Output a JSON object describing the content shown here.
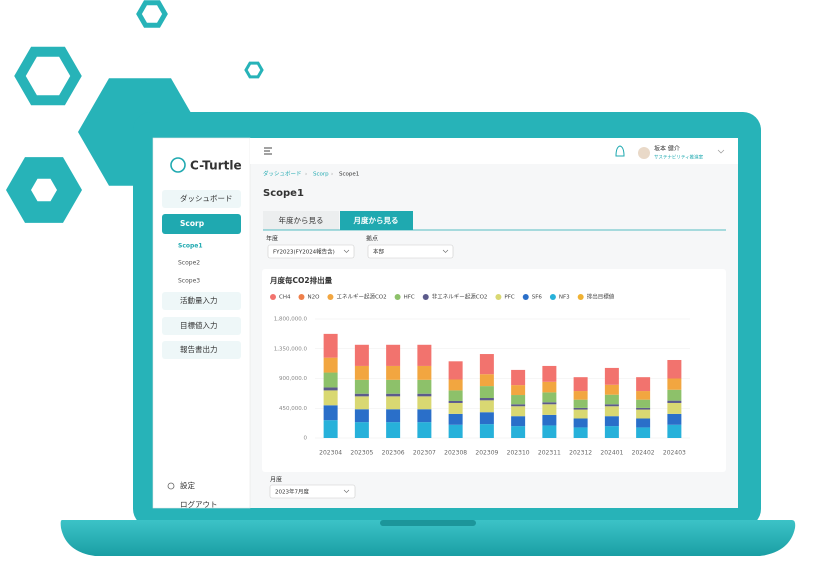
{
  "sidebar": {
    "logo": "C-Turtle",
    "menu": [
      {
        "label": "ダッシュボード"
      },
      {
        "label": "Scorp",
        "children": [
          "Scope1",
          "Scope2",
          "Scope3"
        ]
      },
      {
        "label": "活動量入力"
      },
      {
        "label": "目標値入力"
      },
      {
        "label": "報告書出力"
      }
    ],
    "footer": [
      "設定",
      "ログアウト"
    ]
  },
  "header": {
    "user_name": "坂本 健介",
    "user_role": "サステナビリティ推進室"
  },
  "breadcrumb": [
    "ダッシュボード",
    "Scorp",
    "Scope1"
  ],
  "page_title": "Scope1",
  "tabs": [
    "年度から見る",
    "月度から見る"
  ],
  "filters": [
    {
      "label": "年度",
      "value": "FY2023(FY2024報告含)"
    },
    {
      "label": "拠点",
      "value": "本部"
    }
  ],
  "month_filter": {
    "label": "月度",
    "value": "2023年7月度"
  },
  "chart_data": {
    "type": "stacked_bar",
    "title": "月度毎CO2排出量",
    "categories": [
      "202304",
      "202305",
      "202306",
      "202307",
      "202308",
      "202309",
      "202310",
      "202311",
      "202312",
      "202401",
      "202402",
      "202403"
    ],
    "series": [
      {
        "name": "CH4",
        "color": "#f2736e",
        "values": [
          360000,
          320000,
          320000,
          320000,
          275000,
          305000,
          230000,
          240000,
          210000,
          255000,
          210000,
          280000
        ]
      },
      {
        "name": "N2O",
        "color": "#ef7f4a",
        "values": [
          null,
          null,
          null,
          null,
          null,
          null,
          null,
          null,
          null,
          null,
          null,
          null
        ]
      },
      {
        "name": "エネルギー起源CO2",
        "color": "#f2a640",
        "values": [
          225000,
          210000,
          210000,
          210000,
          165000,
          180000,
          150000,
          160000,
          130000,
          150000,
          130000,
          170000
        ]
      },
      {
        "name": "HFC",
        "color": "#8dc16a",
        "values": [
          225000,
          210000,
          210000,
          210000,
          160000,
          180000,
          140000,
          150000,
          125000,
          145000,
          125000,
          165000
        ]
      },
      {
        "name": "非エネルギー起源CO2",
        "color": "#5c5b8c",
        "values": [
          45000,
          40000,
          40000,
          40000,
          30000,
          35000,
          30000,
          30000,
          25000,
          30000,
          25000,
          35000
        ]
      },
      {
        "name": "PFC",
        "color": "#d9d872",
        "values": [
          225000,
          195000,
          195000,
          195000,
          165000,
          180000,
          150000,
          160000,
          135000,
          150000,
          135000,
          165000
        ]
      },
      {
        "name": "SF6",
        "color": "#2a6fc9",
        "values": [
          225000,
          195000,
          195000,
          195000,
          165000,
          180000,
          150000,
          160000,
          135000,
          150000,
          135000,
          165000
        ]
      },
      {
        "name": "NF3",
        "color": "#27b1da",
        "values": [
          270000,
          240000,
          240000,
          240000,
          200000,
          210000,
          180000,
          190000,
          160000,
          180000,
          160000,
          200000
        ]
      },
      {
        "name": "排出目標値",
        "color": "#f0b232",
        "values": [
          null,
          null,
          null,
          null,
          null,
          null,
          null,
          null,
          null,
          null,
          null,
          null
        ]
      }
    ],
    "ylim": [
      0,
      1800000
    ],
    "yticks": [
      0,
      {
        "value": 450000,
        "label": "450,000.0"
      },
      {
        "value": 900000,
        "label": "900,000.0"
      },
      {
        "value": 1350000,
        "label": "1,350,000.0"
      },
      {
        "value": 1800000,
        "label": "1,800,000.0"
      }
    ],
    "grid": true,
    "legend": "top"
  }
}
